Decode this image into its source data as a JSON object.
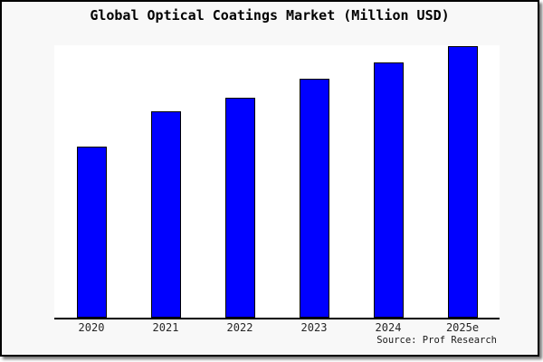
{
  "frame": {
    "background": "#f8f8f8",
    "border_color": "#000000",
    "plot_background": "#ffffff"
  },
  "title": "Global Optical Coatings Market (Million USD)",
  "source": "Source: Prof Research",
  "chart_data": {
    "type": "bar",
    "title": "Global Optical Coatings Market (Million USD)",
    "categories": [
      "2020",
      "2021",
      "2022",
      "2023",
      "2024",
      "2025e"
    ],
    "values": [
      63,
      76,
      81,
      88,
      94,
      100
    ],
    "values_note": "no y-axis ticks or data labels shown; values estimated as relative bar heights with tallest bar = 100",
    "xlabel": "",
    "ylabel": "",
    "ylim": [
      0,
      100
    ],
    "grid": false,
    "legend": "none",
    "bar_color": "#0000ff",
    "bar_edge_color": "#000000",
    "axis_color": "#000000",
    "annotation": "Source: Prof Research"
  }
}
